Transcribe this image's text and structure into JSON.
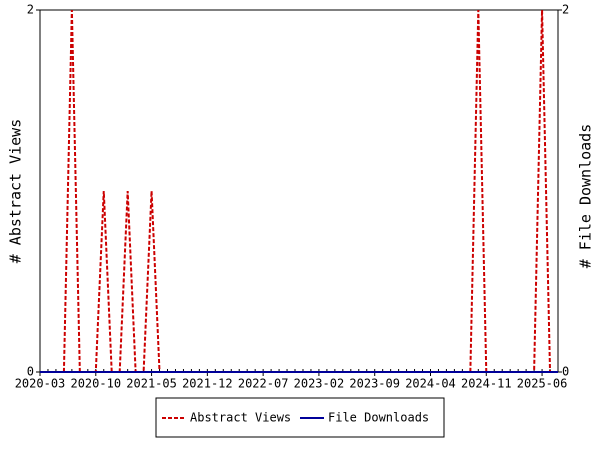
{
  "chart_data": {
    "type": "line",
    "ylabel": "# Abstract Views",
    "y2label": "# File Downloads",
    "categories": [
      "2020-03",
      null,
      null,
      null,
      null,
      null,
      null,
      "2020-10",
      null,
      null,
      null,
      null,
      null,
      null,
      "2021-05",
      null,
      null,
      null,
      null,
      null,
      null,
      "2021-12",
      null,
      null,
      null,
      null,
      null,
      null,
      "2022-07",
      null,
      null,
      null,
      null,
      null,
      null,
      "2023-02",
      null,
      null,
      null,
      null,
      null,
      null,
      "2023-09",
      null,
      null,
      null,
      null,
      null,
      null,
      "2024-04",
      null,
      null,
      null,
      null,
      null,
      null,
      "2024-11",
      null,
      null,
      null,
      null,
      null,
      null,
      "2025-06",
      null,
      null
    ],
    "series": [
      {
        "name": "Abstract Views",
        "color": "#cc0000",
        "dashed": true,
        "values": [
          0,
          0,
          0,
          0,
          2,
          0,
          0,
          0,
          1,
          0,
          0,
          1,
          0,
          0,
          1,
          0,
          0,
          0,
          0,
          0,
          0,
          0,
          0,
          0,
          0,
          0,
          0,
          0,
          0,
          0,
          0,
          0,
          0,
          0,
          0,
          0,
          0,
          0,
          0,
          0,
          0,
          0,
          0,
          0,
          0,
          0,
          0,
          0,
          0,
          0,
          0,
          0,
          0,
          0,
          0,
          2,
          0,
          0,
          0,
          0,
          0,
          0,
          0,
          2,
          0,
          0
        ]
      },
      {
        "name": "File Downloads",
        "color": "#000099",
        "axis": "y2",
        "dashed": false,
        "values": [
          0,
          0,
          0,
          0,
          0,
          0,
          0,
          0,
          0,
          0,
          0,
          0,
          0,
          0,
          0,
          0,
          0,
          0,
          0,
          0,
          0,
          0,
          0,
          0,
          0,
          0,
          0,
          0,
          0,
          0,
          0,
          0,
          0,
          0,
          0,
          0,
          0,
          0,
          0,
          0,
          0,
          0,
          0,
          0,
          0,
          0,
          0,
          0,
          0,
          0,
          0,
          0,
          0,
          0,
          0,
          0,
          0,
          0,
          0,
          0,
          0,
          0,
          0,
          0,
          0,
          0
        ]
      }
    ],
    "ylim": [
      0,
      2
    ],
    "yticks": [
      0,
      2
    ],
    "y2lim": [
      0,
      2
    ],
    "y2ticks": [
      0,
      2
    ]
  }
}
